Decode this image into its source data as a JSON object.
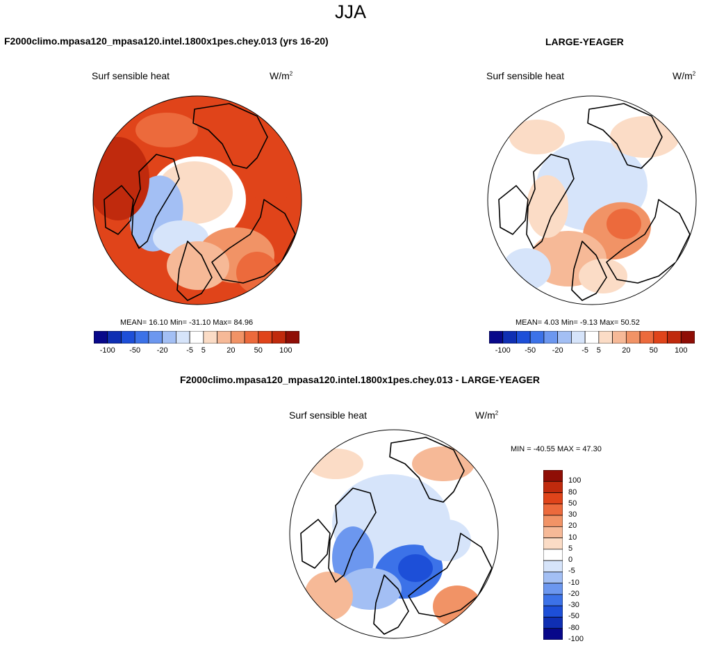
{
  "figure": {
    "season": "JJA",
    "left_run_title": "F2000climo.mpasa120_mpasa120.intel.1800x1pes.chey.013 (yrs 16-20)",
    "right_obs_title": "LARGE-YEAGER",
    "diff_title": "F2000climo.mpasa120_mpasa120.intel.1800x1pes.chey.013 - LARGE-YEAGER"
  },
  "palette": {
    "abs": [
      "#08088a",
      "#0f2fb3",
      "#1d4fd8",
      "#3c72e8",
      "#6c97ef",
      "#a3bff4",
      "#d6e4fa",
      "#ffffff",
      "#fbdcc6",
      "#f6b997",
      "#f19366",
      "#ec6a3c",
      "#e0441a",
      "#c02a0d",
      "#8f0e06"
    ],
    "diff": [
      "#08088a",
      "#0f2fb3",
      "#1d4fd8",
      "#3c72e8",
      "#6c97ef",
      "#a3bff4",
      "#d6e4fa",
      "#ffffff",
      "#fbdcc6",
      "#f6b997",
      "#f19366",
      "#ec6a3c",
      "#e0441a",
      "#c02a0d",
      "#8f0e06"
    ],
    "land_outline": "#000000"
  },
  "chart_data": [
    {
      "type": "heatmap",
      "projection": "north polar stereographic",
      "plot_title": "Surf sensible heat",
      "units": "W/m",
      "units_sup": "2",
      "stats": {
        "label": "MEAN=  16.10  Min= -31.10  Max=  84.96",
        "mean": 16.1,
        "min": -31.1,
        "max": 84.96
      },
      "colorbar": {
        "orientation": "horizontal",
        "tick_labels": [
          "-100",
          "-50",
          "-20",
          "-5",
          "5",
          "20",
          "50",
          "100"
        ]
      }
    },
    {
      "type": "heatmap",
      "projection": "north polar stereographic",
      "plot_title": "Surf sensible heat",
      "units": "W/m",
      "units_sup": "2",
      "stats": {
        "label": "MEAN=   4.03  Min=  -9.13  Max=  50.52",
        "mean": 4.03,
        "min": -9.13,
        "max": 50.52
      },
      "colorbar": {
        "orientation": "horizontal",
        "tick_labels": [
          "-100",
          "-50",
          "-20",
          "-5",
          "5",
          "20",
          "50",
          "100"
        ]
      }
    },
    {
      "type": "heatmap",
      "projection": "north polar stereographic",
      "plot_title": "Surf sensible heat",
      "units": "W/m",
      "units_sup": "2",
      "stats": {
        "label": "MIN = -40.55 MAX =  47.30",
        "min": -40.55,
        "max": 47.3
      },
      "colorbar": {
        "orientation": "vertical",
        "tick_labels": [
          "100",
          "80",
          "50",
          "30",
          "20",
          "10",
          "5",
          "0",
          "-5",
          "-10",
          "-20",
          "-30",
          "-50",
          "-80",
          "-100"
        ]
      }
    }
  ]
}
